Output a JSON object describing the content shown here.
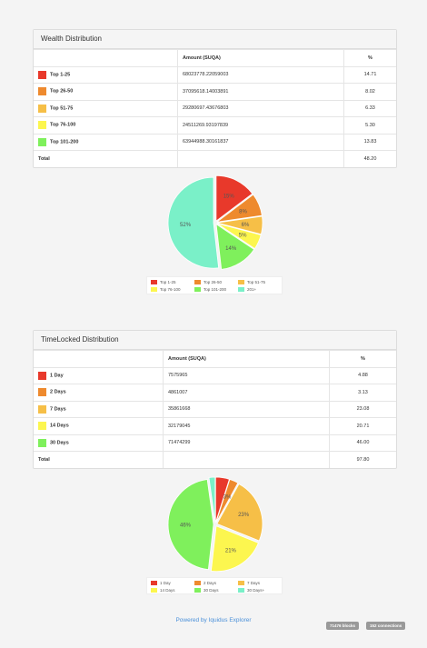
{
  "wealth": {
    "title": "Wealth Distribution",
    "headers": [
      "",
      "Amount (SUQA)",
      "%"
    ],
    "rows": [
      {
        "label": "Top 1-25",
        "color": "#e8392b",
        "amount": "68023778.22059003",
        "percent": "14.71"
      },
      {
        "label": "Top 26-50",
        "color": "#ee8a2e",
        "amount": "37095618.14003891",
        "percent": "8.02"
      },
      {
        "label": "Top 51-75",
        "color": "#f6bf47",
        "amount": "29280697.43676803",
        "percent": "6.33"
      },
      {
        "label": "Top 76-100",
        "color": "#fcf64f",
        "amount": "24511269.93197839",
        "percent": "5.30"
      },
      {
        "label": "Top 101-200",
        "color": "#7ff05c",
        "amount": "63944988.30161837",
        "percent": "13.83"
      }
    ],
    "total_label": "Total",
    "total_percent": "48.20"
  },
  "timelocked": {
    "title": "TimeLocked Distribution",
    "headers": [
      "",
      "Amount (SUQA)",
      "%"
    ],
    "rows": [
      {
        "label": "1 Day",
        "color": "#e8392b",
        "amount": "7575965",
        "percent": "4.88"
      },
      {
        "label": "2 Days",
        "color": "#ee8a2e",
        "amount": "4861007",
        "percent": "3.13"
      },
      {
        "label": "7 Days",
        "color": "#f6bf47",
        "amount": "35861668",
        "percent": "23.08"
      },
      {
        "label": "14 Days",
        "color": "#fcf64f",
        "amount": "32179045",
        "percent": "20.71"
      },
      {
        "label": "30 Days",
        "color": "#7ff05c",
        "amount": "71474299",
        "percent": "46.00"
      }
    ],
    "total_label": "Total",
    "total_percent": "97.80"
  },
  "chart_data": [
    {
      "type": "pie",
      "slices": [
        {
          "label": "Top 1-25",
          "value": 14.71,
          "color": "#e8392b",
          "text": "15%"
        },
        {
          "label": "Top 26-50",
          "value": 8.02,
          "color": "#ee8a2e",
          "text": "8%"
        },
        {
          "label": "Top 51-75",
          "value": 6.33,
          "color": "#f6bf47",
          "text": "6%"
        },
        {
          "label": "Top 76-100",
          "value": 5.3,
          "color": "#fcf64f",
          "text": "5%"
        },
        {
          "label": "Top 101-200",
          "value": 13.83,
          "color": "#7ff05c",
          "text": "14%"
        },
        {
          "label": "201+",
          "value": 51.8,
          "color": "#7af0c8",
          "text": "52%"
        }
      ],
      "legend": [
        "Top 1-25",
        "Top 26-50",
        "Top 51-75",
        "Top 76-100",
        "Top 101-200",
        "201+"
      ],
      "legend_placement": "bottom"
    },
    {
      "type": "pie",
      "slices": [
        {
          "label": "1 Day",
          "value": 4.88,
          "color": "#e8392b",
          "text": ""
        },
        {
          "label": "2 Days",
          "value": 3.13,
          "color": "#ee8a2e",
          "text": "3%"
        },
        {
          "label": "7 Days",
          "value": 23.08,
          "color": "#f6bf47",
          "text": "23%"
        },
        {
          "label": "14 Days",
          "value": 20.71,
          "color": "#fcf64f",
          "text": "21%"
        },
        {
          "label": "30 Days",
          "value": 46.0,
          "color": "#7ff05c",
          "text": "46%"
        },
        {
          "label": "30 Days+",
          "value": 2.2,
          "color": "#7af0c8",
          "text": ""
        }
      ],
      "legend": [
        "1 Day",
        "2 Days",
        "7 Days",
        "14 Days",
        "30 Days",
        "30 Days+"
      ],
      "legend_placement": "bottom"
    }
  ],
  "footer": {
    "link": "Powered by Iquidus Explorer",
    "blocks": "71476 blocks",
    "connections": "152 connections"
  }
}
